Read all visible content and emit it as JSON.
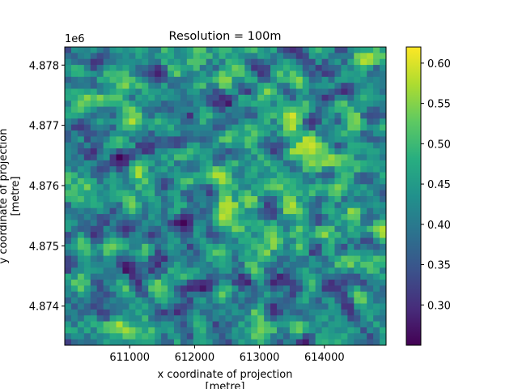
{
  "chart_data": {
    "type": "heatmap",
    "title": "Resolution = 100m",
    "xlabel": "x coordinate of projection",
    "xlabel_unit": "[metre]",
    "ylabel": "y coordinate of projection",
    "ylabel_unit": "[metre]",
    "y_offset_label": "1e6",
    "xlim": [
      610000,
      614950
    ],
    "ylim": [
      4873350,
      4878300
    ],
    "x_ticks": [
      611000,
      612000,
      613000,
      614000
    ],
    "x_tick_labels": [
      "611000",
      "612000",
      "613000",
      "614000"
    ],
    "y_ticks": [
      4.874,
      4.875,
      4.876,
      4.877,
      4.878
    ],
    "y_tick_labels": [
      "4.874",
      "4.875",
      "4.876",
      "4.877",
      "4.878"
    ],
    "grid_resolution_m": 100,
    "grid_columns": 50,
    "grid_rows": 50,
    "colormap": "viridis",
    "value_range": [
      0.25,
      0.62
    ],
    "colorbar_ticks": [
      0.3,
      0.35,
      0.4,
      0.45,
      0.5,
      0.55,
      0.6
    ],
    "colorbar_tick_labels": [
      "0.30",
      "0.35",
      "0.40",
      "0.45",
      "0.50",
      "0.55",
      "0.60"
    ],
    "grid": false,
    "legend": "colorbar-right"
  }
}
